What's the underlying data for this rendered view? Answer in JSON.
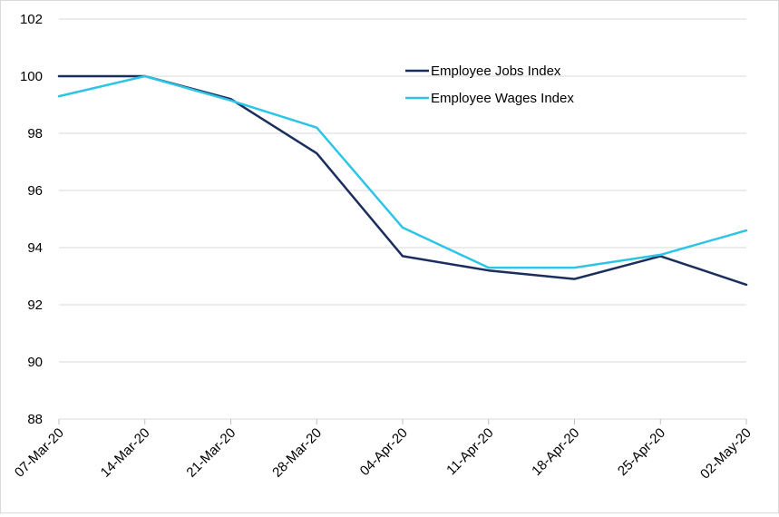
{
  "chart_data": {
    "type": "line",
    "title": "",
    "xlabel": "",
    "ylabel": "",
    "categories": [
      "07-Mar-20",
      "14-Mar-20",
      "21-Mar-20",
      "28-Mar-20",
      "04-Apr-20",
      "11-Apr-20",
      "18-Apr-20",
      "25-Apr-20",
      "02-May-20"
    ],
    "ylim": [
      88,
      102
    ],
    "yticks": [
      88,
      90,
      92,
      94,
      96,
      98,
      100,
      102
    ],
    "grid": true,
    "legend_position": "top-right-inside",
    "series": [
      {
        "name": "Employee Jobs Index",
        "color": "#1b2e5e",
        "values": [
          100.0,
          100.0,
          99.2,
          97.3,
          93.7,
          93.2,
          92.9,
          93.7,
          92.7
        ]
      },
      {
        "name": "Employee Wages Index",
        "color": "#2ec4e6",
        "values": [
          99.3,
          100.0,
          99.15,
          98.2,
          94.7,
          93.3,
          93.3,
          93.75,
          94.6
        ]
      }
    ]
  }
}
